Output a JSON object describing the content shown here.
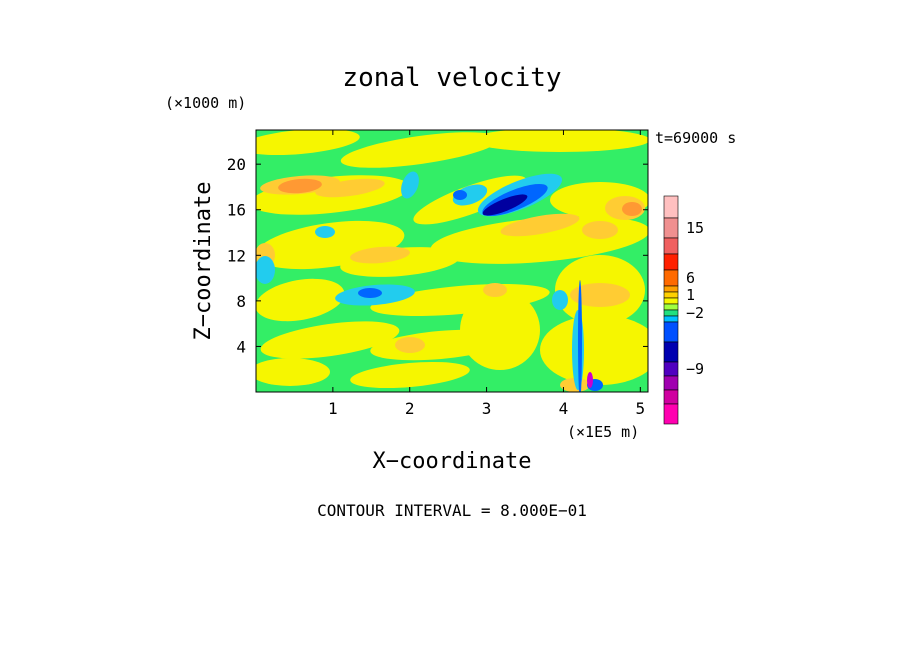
{
  "chart_data": {
    "type": "heatmap",
    "title": "zonal velocity",
    "xlabel": "X−coordinate",
    "ylabel": "Z−coordinate",
    "x_unit": "(×1E5 m)",
    "z_unit": "(×1000 m)",
    "time_label": "t=69000 s",
    "footer": "CONTOUR INTERVAL = 8.000E−01",
    "xlim": [
      0,
      5.1
    ],
    "ylim": [
      0,
      23
    ],
    "x_ticks": [
      {
        "value": 1,
        "label": "1"
      },
      {
        "value": 2,
        "label": "2"
      },
      {
        "value": 3,
        "label": "3"
      },
      {
        "value": 4,
        "label": "4"
      },
      {
        "value": 5,
        "label": "5"
      }
    ],
    "y_ticks": [
      {
        "value": 4,
        "label": "4"
      },
      {
        "value": 8,
        "label": "8"
      },
      {
        "value": 12,
        "label": "12"
      },
      {
        "value": 16,
        "label": "16"
      },
      {
        "value": 20,
        "label": "20"
      }
    ],
    "colorbar": {
      "levels_top_to_bottom": [
        "#ffc0c0",
        "#f09090",
        "#f06060",
        "#ff2000",
        "#ff6a00",
        "#ffa000",
        "#ffd000",
        "#f6f600",
        "#a0ff40",
        "#20e080",
        "#00c0ff",
        "#0050ff",
        "#0000b0",
        "#5000c0",
        "#a000b0",
        "#d000a0",
        "#ff00b0"
      ],
      "labels": [
        {
          "text": "15",
          "level_index": 1
        },
        {
          "text": "6",
          "level_index": 4
        },
        {
          "text": "1",
          "level_index": 6
        },
        {
          "text": "−2",
          "level_index": 9
        },
        {
          "text": "−9",
          "level_index": 13
        }
      ]
    },
    "field": {
      "background": "#33ee66",
      "yellow": "#f6f600",
      "light_orange": "#ffcc33",
      "orange": "#ff9933",
      "cyan": "#22ccee",
      "blue": "#0066ff",
      "dark_blue": "#0000a0",
      "magenta": "#cc00cc"
    }
  }
}
